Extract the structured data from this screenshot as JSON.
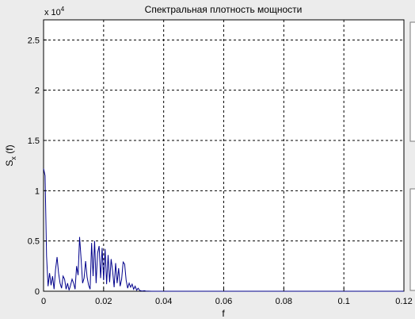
{
  "chart_data": {
    "type": "line",
    "title": "Спектральная плотность мощности",
    "xlabel": "f",
    "ylabel_main": "S",
    "ylabel_sub": "x",
    "ylabel_tail": " (f)",
    "exponent_base": "x 10",
    "exponent_power": "4",
    "xlim": [
      0,
      0.12
    ],
    "ylim": [
      0,
      27000
    ],
    "x_ticks": [
      0,
      0.02,
      0.04,
      0.06,
      0.08,
      0.1,
      0.12
    ],
    "x_tick_labels": [
      "0",
      "0.02",
      "0.04",
      "0.06",
      "0.08",
      "0.1",
      "0.12"
    ],
    "y_ticks": [
      0,
      5000,
      10000,
      15000,
      20000,
      25000
    ],
    "y_tick_labels": [
      "0",
      "0.5",
      "1",
      "1.5",
      "2",
      "2.5"
    ],
    "grid": true,
    "grid_style": "dashed",
    "line_color": "#00008b",
    "series": [
      {
        "x": [
          0,
          0.0005,
          0.001,
          0.0015,
          0.002,
          0.0025,
          0.003,
          0.0035,
          0.004,
          0.0045,
          0.005,
          0.0055,
          0.006,
          0.0065,
          0.007,
          0.0075,
          0.008,
          0.0085,
          0.009,
          0.0095,
          0.01,
          0.0105,
          0.011,
          0.0115,
          0.012,
          0.0125,
          0.013,
          0.0135,
          0.014,
          0.0145,
          0.015,
          0.0155,
          0.016,
          0.0165,
          0.017,
          0.0175,
          0.018,
          0.0185,
          0.019,
          0.0195,
          0.02,
          0.0205,
          0.021,
          0.0215,
          0.022,
          0.0225,
          0.023,
          0.0235,
          0.024,
          0.0245,
          0.025,
          0.0255,
          0.026,
          0.0265,
          0.027,
          0.0275,
          0.028,
          0.0285,
          0.029,
          0.0295,
          0.03,
          0.0305,
          0.031,
          0.0315,
          0.032,
          0.0325,
          0.033,
          0.0335,
          0.034,
          0.035,
          0.036,
          0.04,
          0.06,
          0.08,
          0.1,
          0.12
        ],
        "y": [
          12200,
          11500,
          3500,
          500,
          1800,
          600,
          1500,
          200,
          2200,
          3400,
          1800,
          800,
          300,
          1500,
          1200,
          200,
          800,
          100,
          600,
          1200,
          800,
          200,
          2500,
          1600,
          5400,
          3200,
          800,
          1300,
          3000,
          1400,
          600,
          200,
          4800,
          1500,
          5000,
          800,
          3800,
          4500,
          1300,
          4300,
          1100,
          4200,
          700,
          3600,
          900,
          3200,
          2000,
          400,
          2800,
          800,
          2300,
          500,
          1200,
          2900,
          2700,
          1100,
          300,
          800,
          400,
          700,
          200,
          500,
          100,
          300,
          80,
          40,
          20,
          60,
          20,
          10,
          5,
          0,
          0,
          0,
          0,
          0
        ]
      }
    ]
  }
}
